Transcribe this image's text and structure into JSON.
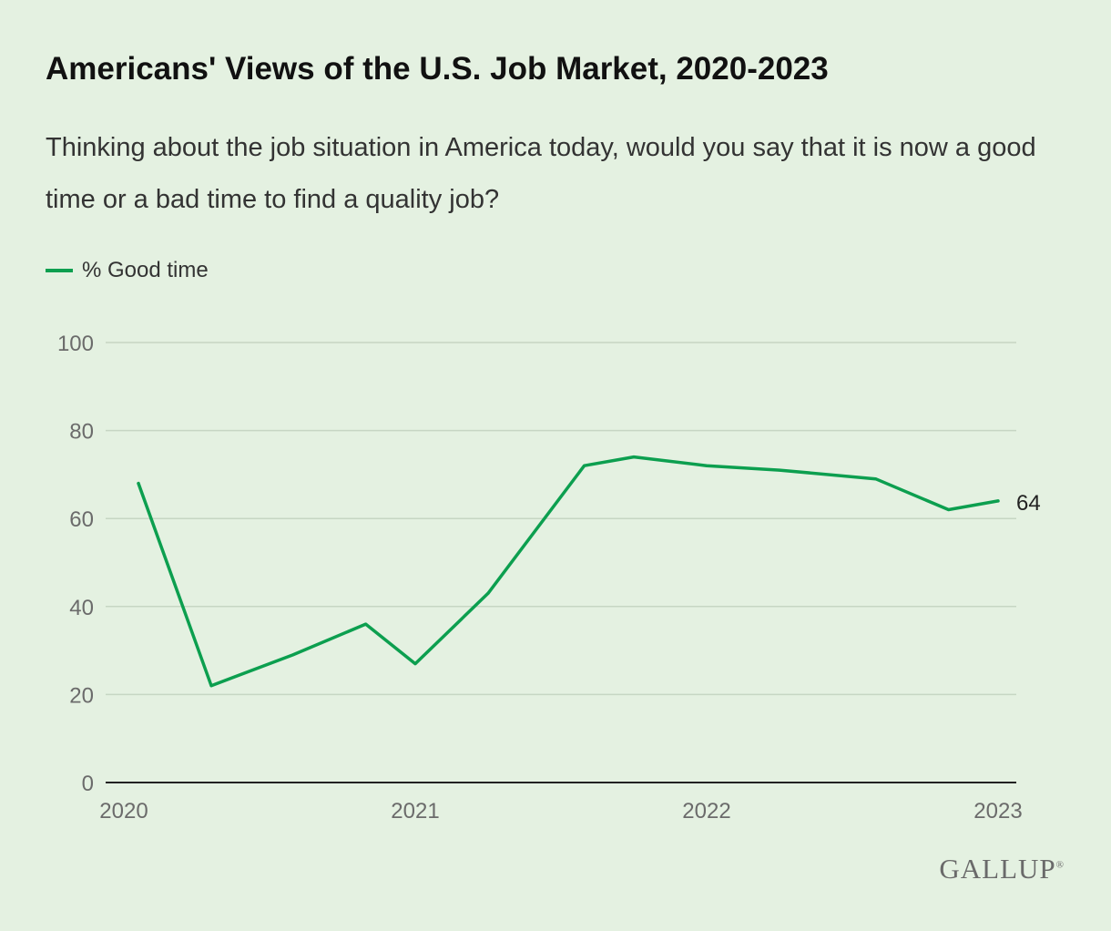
{
  "title": "Americans' Views of the U.S. Job Market, 2020-2023",
  "subtitle": "Thinking about the job situation in America today, would you say that it is now a good time or a bad time to find a quality job?",
  "brand": "GALLUP",
  "brand_mark": "®",
  "colors": {
    "background": "#e4f1e1",
    "series": "#0c9f4f",
    "grid": "#c6d6c3",
    "axis": "#222222"
  },
  "chart_data": {
    "type": "line",
    "title": "Americans' Views of the U.S. Job Market, 2020-2023",
    "xlabel": "",
    "ylabel": "",
    "xlim": [
      2020,
      2023
    ],
    "ylim": [
      0,
      100
    ],
    "x_ticks": [
      "2020",
      "2021",
      "2022",
      "2023"
    ],
    "y_ticks": [
      "0",
      "20",
      "40",
      "60",
      "80",
      "100"
    ],
    "grid": true,
    "legend_position": "top-left",
    "end_label": "64",
    "series": [
      {
        "name": "% Good time",
        "color": "#0c9f4f",
        "x": [
          2020.05,
          2020.3,
          2020.58,
          2020.83,
          2021.0,
          2021.25,
          2021.58,
          2021.75,
          2022.0,
          2022.25,
          2022.58,
          2022.83,
          2023.0
        ],
        "values": [
          68,
          22,
          29,
          36,
          27,
          43,
          72,
          74,
          72,
          71,
          69,
          62,
          64
        ]
      }
    ]
  }
}
